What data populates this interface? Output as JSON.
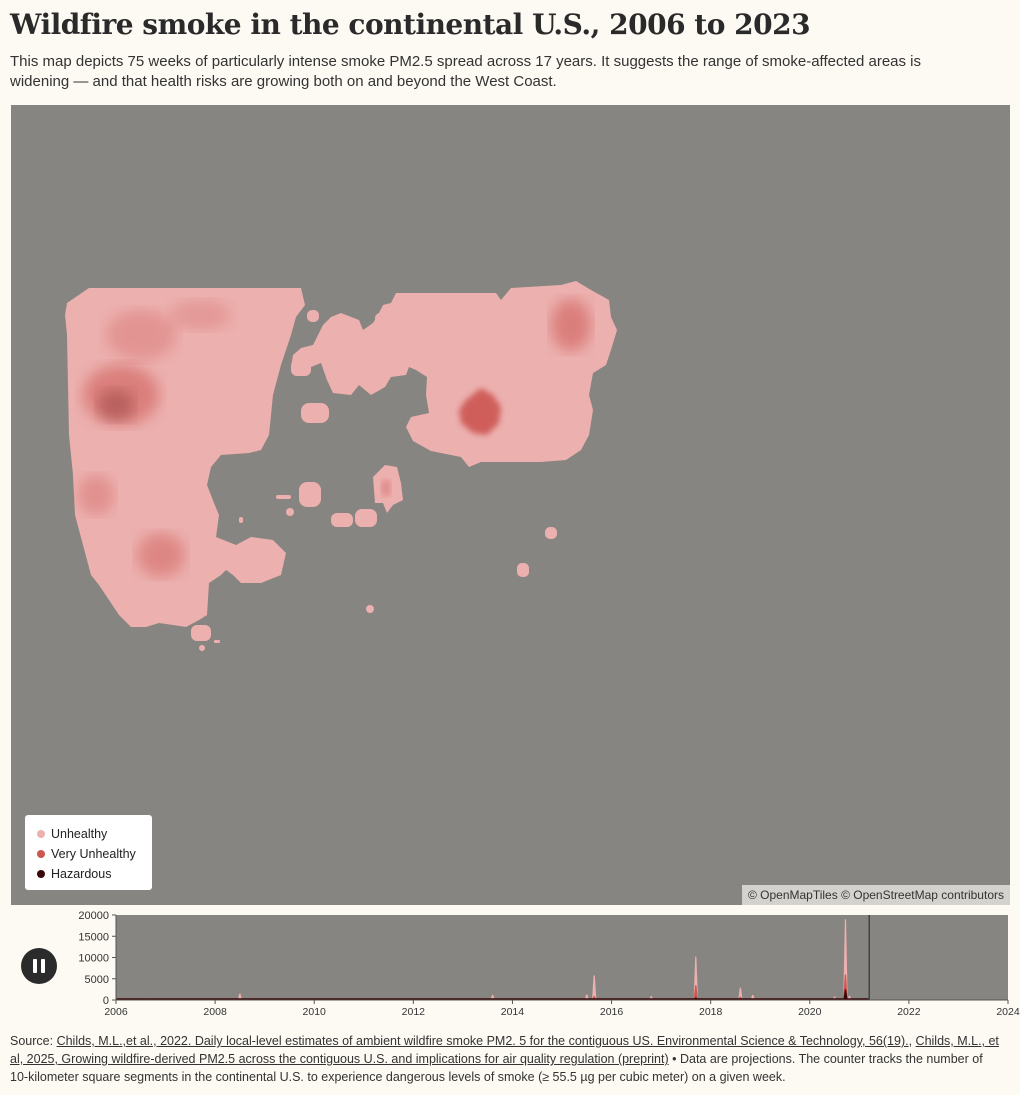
{
  "title": "Wildfire smoke in the continental U.S., 2006 to 2023",
  "subtitle": "This map depicts 75 weeks of particularly intense smoke PM2.5 spread across 17 years. It suggests the range of smoke-affected areas is widening — and that health risks are growing both on and beyond the West Coast.",
  "colors": {
    "background": "#fdf9f3",
    "map": "#878581",
    "unhealthy": "#ecb0ae",
    "very_unhealthy": "#cc5752",
    "hazardous": "#3d0708"
  },
  "legend": [
    {
      "label": "Unhealthy",
      "color": "#ecb0ae"
    },
    {
      "label": "Very Unhealthy",
      "color": "#cc5752"
    },
    {
      "label": "Hazardous",
      "color": "#3d0708"
    }
  ],
  "attribution": "© OpenMapTiles © OpenStreetMap contributors",
  "timeline": {
    "play_icon": "pause-icon",
    "current_position_year": 2021.2
  },
  "chart_data": {
    "type": "area",
    "xlim": [
      2006,
      2024
    ],
    "ylim": [
      0,
      20000
    ],
    "x_ticks": [
      "2006",
      "2008",
      "2010",
      "2012",
      "2014",
      "2016",
      "2018",
      "2020",
      "2022",
      "2024"
    ],
    "y_ticks": [
      "20000",
      "15000",
      "10000",
      "5000",
      "0"
    ],
    "series": [
      {
        "name": "Unhealthy",
        "color": "#ecb0ae",
        "points": [
          [
            2006.6,
            400
          ],
          [
            2007.4,
            150
          ],
          [
            2008.5,
            1500
          ],
          [
            2013.6,
            1200
          ],
          [
            2014.5,
            300
          ],
          [
            2015.5,
            1300
          ],
          [
            2015.65,
            5800
          ],
          [
            2016.8,
            900
          ],
          [
            2017.7,
            10200
          ],
          [
            2018.6,
            2900
          ],
          [
            2018.85,
            1200
          ],
          [
            2020.5,
            800
          ],
          [
            2020.72,
            19000
          ],
          [
            2020.8,
            1000
          ]
        ]
      },
      {
        "name": "Very Unhealthy",
        "color": "#cc5752",
        "points": [
          [
            2015.65,
            900
          ],
          [
            2017.7,
            3500
          ],
          [
            2018.6,
            800
          ],
          [
            2020.72,
            6000
          ]
        ]
      },
      {
        "name": "Hazardous",
        "color": "#3d0708",
        "points": [
          [
            2017.7,
            600
          ],
          [
            2020.72,
            2500
          ]
        ]
      }
    ]
  },
  "source": {
    "prefix": "Source: ",
    "link1": "Childs, M.L.,et al., 2022. Daily local-level estimates of ambient wildfire smoke PM2. 5 for the contiguous US. Environmental Science & Technology, 56(19).",
    "sep": ", ",
    "link2": "Childs, M.L., et al, 2025, Growing wildfire-derived PM2.5 across the contiguous U.S. and implications for air quality regulation (preprint)",
    "suffix": " • Data are projections. The counter tracks the number of 10-kilometer square segments in the continental U.S. to experience dangerous levels of smoke (≥ 55.5 µg per cubic meter) on a given week."
  }
}
